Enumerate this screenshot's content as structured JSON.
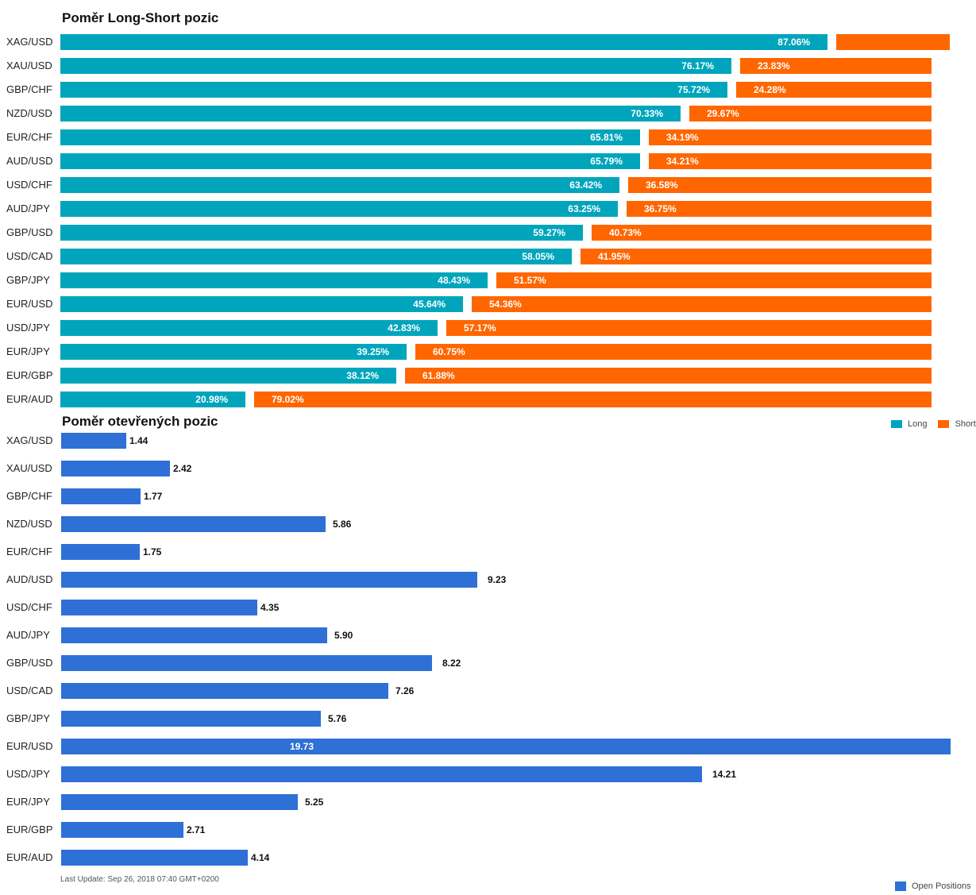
{
  "chart_data": [
    {
      "type": "bar",
      "orientation": "horizontal",
      "stacked": "percent",
      "title": "Poměr Long-Short pozic",
      "categories": [
        "XAG/USD",
        "XAU/USD",
        "GBP/CHF",
        "NZD/USD",
        "EUR/CHF",
        "AUD/USD",
        "USD/CHF",
        "AUD/JPY",
        "GBP/USD",
        "USD/CAD",
        "GBP/JPY",
        "EUR/USD",
        "USD/JPY",
        "EUR/JPY",
        "EUR/GBP",
        "EUR/AUD"
      ],
      "series": [
        {
          "name": "Long",
          "color": "#00a5bc",
          "values": [
            87.06,
            76.17,
            75.72,
            70.33,
            65.81,
            65.79,
            63.42,
            63.25,
            59.27,
            58.05,
            48.43,
            45.64,
            42.83,
            39.25,
            38.12,
            20.98
          ]
        },
        {
          "name": "Short",
          "color": "#ff6600",
          "values": [
            12.94,
            23.83,
            24.28,
            29.67,
            34.19,
            34.21,
            36.58,
            36.75,
            40.73,
            41.95,
            51.57,
            54.36,
            57.17,
            60.75,
            61.88,
            79.02
          ]
        }
      ],
      "labels": {
        "long": [
          "87.06%",
          "76.17%",
          "75.72%",
          "70.33%",
          "65.81%",
          "65.79%",
          "63.42%",
          "63.25%",
          "59.27%",
          "58.05%",
          "48.43%",
          "45.64%",
          "42.83%",
          "39.25%",
          "38.12%",
          "20.98%"
        ],
        "short": [
          "",
          "23.83%",
          "24.28%",
          "29.67%",
          "34.19%",
          "34.21%",
          "36.58%",
          "36.75%",
          "40.73%",
          "41.95%",
          "51.57%",
          "54.36%",
          "57.17%",
          "60.75%",
          "61.88%",
          "79.02%"
        ]
      },
      "legend_position": "bottom-right",
      "grid": false
    },
    {
      "type": "bar",
      "orientation": "horizontal",
      "title": "Poměr otevřených pozic",
      "categories": [
        "XAG/USD",
        "XAU/USD",
        "GBP/CHF",
        "NZD/USD",
        "EUR/CHF",
        "AUD/USD",
        "USD/CHF",
        "AUD/JPY",
        "GBP/USD",
        "USD/CAD",
        "GBP/JPY",
        "EUR/USD",
        "USD/JPY",
        "EUR/JPY",
        "EUR/GBP",
        "EUR/AUD"
      ],
      "series": [
        {
          "name": "Open Positions",
          "color": "#2f70d6",
          "values": [
            1.44,
            2.42,
            1.77,
            5.86,
            1.75,
            9.23,
            4.35,
            5.9,
            8.22,
            7.26,
            5.76,
            19.73,
            14.21,
            5.25,
            2.71,
            4.14
          ]
        }
      ],
      "labels": [
        "1.44",
        "2.42",
        "1.77",
        "5.86",
        "1.75",
        "9.23",
        "4.35",
        "5.90",
        "8.22",
        "7.26",
        "5.76",
        "19.73",
        "14.21",
        "5.25",
        "2.71",
        "4.14"
      ],
      "xlim": [
        0,
        19.73
      ],
      "legend_position": "bottom-right",
      "grid": false
    }
  ],
  "footer": {
    "last_update": "Last Update: Sep 26, 2018 07:40 GMT+0200"
  }
}
